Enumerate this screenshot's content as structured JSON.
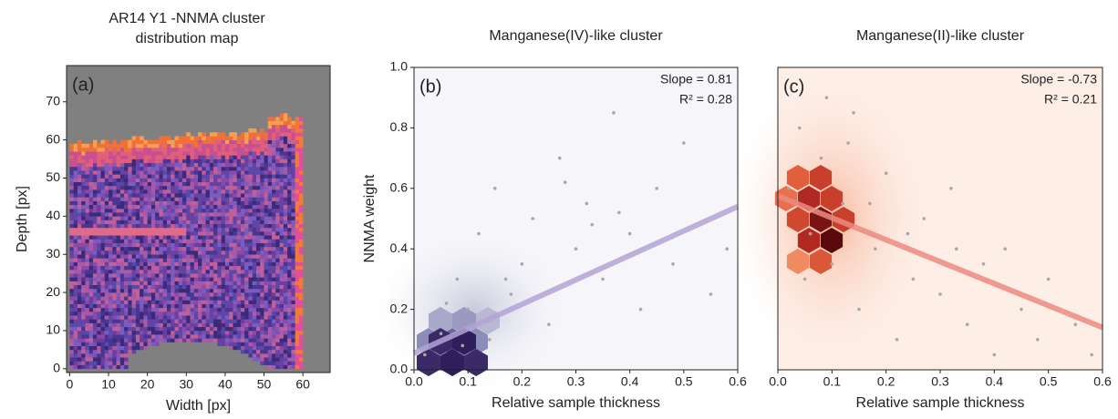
{
  "chart_data": [
    {
      "type": "image",
      "title": "AR14 Y1 -NNMA cluster distribution map",
      "panel_label": "(a)",
      "x_label": "Width [px]",
      "y_label": "Depth [px]",
      "xlim": [
        -0.8,
        67
      ],
      "ylim": [
        -1,
        79.5
      ],
      "xticks": [
        0,
        10,
        20,
        30,
        40,
        50,
        60
      ],
      "yticks": [
        0,
        10,
        20,
        30,
        40,
        50,
        60,
        70
      ]
    },
    {
      "type": "scatter",
      "title": "Manganese(IV)-like cluster",
      "panel_label": "(b)",
      "x_label": "Relative sample thickness",
      "y_label": "NNMA weight",
      "annotations": [
        "Slope = 0.81",
        "R² = 0.28"
      ],
      "xlim": [
        0,
        0.6
      ],
      "ylim": [
        0,
        1.0
      ],
      "xticks": [
        {
          "value": 0,
          "label": "0.0"
        },
        0.1,
        0.2,
        0.3,
        0.4,
        0.5,
        0.6
      ],
      "yticks": [
        {
          "value": 0,
          "label": "0.0"
        },
        0.2,
        0.4,
        0.6,
        0.8,
        {
          "value": 1,
          "label": "1.0"
        }
      ],
      "color": "#a8a8a8",
      "background": "#f6f6fa",
      "x": [
        0.02,
        0.05,
        0.08,
        0.1,
        0.12,
        0.14,
        0.15,
        0.18,
        0.2,
        0.22,
        0.25,
        0.27,
        0.3,
        0.32,
        0.35,
        0.37,
        0.4,
        0.42,
        0.45,
        0.48,
        0.5,
        0.55,
        0.58,
        0.06,
        0.09,
        0.13,
        0.17,
        0.28,
        0.33,
        0.38
      ],
      "values": [
        0.05,
        0.12,
        0.3,
        0.2,
        0.45,
        0.1,
        0.6,
        0.25,
        0.35,
        0.5,
        0.15,
        0.7,
        0.4,
        0.55,
        0.3,
        0.85,
        0.45,
        0.2,
        0.6,
        0.35,
        0.75,
        0.25,
        0.4,
        0.22,
        0.08,
        0.16,
        0.3,
        0.62,
        0.48,
        0.52
      ],
      "fit": {
        "x": [
          0,
          0.6
        ],
        "y": [
          0.055,
          0.54
        ],
        "color": "#b3a3d6"
      }
    },
    {
      "type": "scatter",
      "title": "Manganese(II)-like cluster",
      "panel_label": "(c)",
      "x_label": "Relative sample thickness",
      "annotations": [
        "Slope = -0.73",
        "R² = 0.21"
      ],
      "xlim": [
        0,
        0.6
      ],
      "ylim": [
        0,
        1.0
      ],
      "xticks": [
        {
          "value": 0,
          "label": "0.0"
        },
        0.1,
        0.2,
        0.3,
        0.4,
        0.5,
        0.6
      ],
      "color": "#a8a8a8",
      "background": "#fdeee6",
      "x": [
        0.02,
        0.04,
        0.06,
        0.08,
        0.1,
        0.12,
        0.14,
        0.15,
        0.18,
        0.2,
        0.22,
        0.25,
        0.27,
        0.3,
        0.32,
        0.35,
        0.38,
        0.4,
        0.42,
        0.45,
        0.48,
        0.5,
        0.55,
        0.58,
        0.05,
        0.09,
        0.13,
        0.17,
        0.24,
        0.33
      ],
      "values": [
        0.6,
        0.8,
        0.45,
        0.7,
        0.35,
        0.55,
        0.85,
        0.2,
        0.4,
        0.65,
        0.1,
        0.3,
        0.5,
        0.25,
        0.6,
        0.15,
        0.35,
        0.05,
        0.4,
        0.2,
        0.1,
        0.3,
        0.15,
        0.05,
        0.3,
        0.9,
        0.75,
        0.55,
        0.45,
        0.4
      ],
      "fit": {
        "x": [
          0,
          0.6
        ],
        "y": [
          0.575,
          0.14
        ],
        "color": "#ec8a80"
      }
    }
  ]
}
